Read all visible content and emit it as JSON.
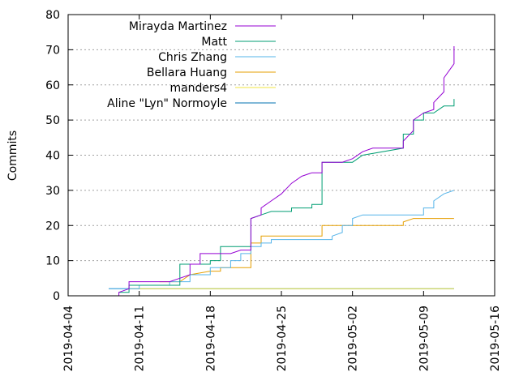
{
  "chart_data": {
    "type": "line",
    "title": "",
    "xlabel": "",
    "ylabel": "Commits",
    "x_axis_type": "date",
    "xlim": [
      "2019-04-04",
      "2019-05-16"
    ],
    "ylim": [
      0,
      80
    ],
    "x_ticks": [
      "2019-04-04",
      "2019-04-11",
      "2019-04-18",
      "2019-04-25",
      "2019-05-02",
      "2019-05-09",
      "2019-05-16"
    ],
    "y_ticks": [
      0,
      10,
      20,
      30,
      40,
      50,
      60,
      70,
      80
    ],
    "grid": "horizontal dotted",
    "legend_position": "top-left",
    "series": [
      {
        "name": "Mirayda Martinez",
        "color": "#9400d3",
        "points": [
          [
            "2019-04-09",
            0
          ],
          [
            "2019-04-09",
            1
          ],
          [
            "2019-04-10",
            2
          ],
          [
            "2019-04-10",
            4
          ],
          [
            "2019-04-14",
            4
          ],
          [
            "2019-04-15",
            5
          ],
          [
            "2019-04-16",
            6
          ],
          [
            "2019-04-16",
            9
          ],
          [
            "2019-04-17",
            9
          ],
          [
            "2019-04-17",
            12
          ],
          [
            "2019-04-20",
            12
          ],
          [
            "2019-04-21",
            13
          ],
          [
            "2019-04-22",
            13
          ],
          [
            "2019-04-22",
            22
          ],
          [
            "2019-04-23",
            23
          ],
          [
            "2019-04-23",
            25
          ],
          [
            "2019-04-24",
            27
          ],
          [
            "2019-04-25",
            29
          ],
          [
            "2019-04-26",
            32
          ],
          [
            "2019-04-27",
            34
          ],
          [
            "2019-04-28",
            35
          ],
          [
            "2019-04-29",
            35
          ],
          [
            "2019-04-29",
            38
          ],
          [
            "2019-05-01",
            38
          ],
          [
            "2019-05-02",
            39
          ],
          [
            "2019-05-03",
            41
          ],
          [
            "2019-05-04",
            42
          ],
          [
            "2019-05-07",
            42
          ],
          [
            "2019-05-07",
            44
          ],
          [
            "2019-05-08",
            47
          ],
          [
            "2019-05-08",
            50
          ],
          [
            "2019-05-09",
            52
          ],
          [
            "2019-05-10",
            53
          ],
          [
            "2019-05-10",
            55
          ],
          [
            "2019-05-11",
            58
          ],
          [
            "2019-05-11",
            62
          ],
          [
            "2019-05-12",
            66
          ],
          [
            "2019-05-12",
            71
          ]
        ]
      },
      {
        "name": "Matt",
        "color": "#009e73",
        "points": [
          [
            "2019-04-09",
            1
          ],
          [
            "2019-04-10",
            1
          ],
          [
            "2019-04-10",
            3
          ],
          [
            "2019-04-15",
            3
          ],
          [
            "2019-04-15",
            9
          ],
          [
            "2019-04-18",
            9
          ],
          [
            "2019-04-18",
            10
          ],
          [
            "2019-04-19",
            10
          ],
          [
            "2019-04-19",
            14
          ],
          [
            "2019-04-22",
            14
          ],
          [
            "2019-04-22",
            22
          ],
          [
            "2019-04-23",
            23
          ],
          [
            "2019-04-24",
            24
          ],
          [
            "2019-04-26",
            24
          ],
          [
            "2019-04-26",
            25
          ],
          [
            "2019-04-28",
            25
          ],
          [
            "2019-04-28",
            26
          ],
          [
            "2019-04-29",
            26
          ],
          [
            "2019-04-29",
            38
          ],
          [
            "2019-05-02",
            38
          ],
          [
            "2019-05-03",
            40
          ],
          [
            "2019-05-07",
            42
          ],
          [
            "2019-05-07",
            46
          ],
          [
            "2019-05-08",
            46
          ],
          [
            "2019-05-08",
            50
          ],
          [
            "2019-05-09",
            50
          ],
          [
            "2019-05-09",
            52
          ],
          [
            "2019-05-10",
            52
          ],
          [
            "2019-05-11",
            54
          ],
          [
            "2019-05-12",
            54
          ],
          [
            "2019-05-12",
            56
          ]
        ]
      },
      {
        "name": "Chris Zhang",
        "color": "#56b4e9",
        "points": [
          [
            "2019-04-08",
            2
          ],
          [
            "2019-04-11",
            2
          ],
          [
            "2019-04-11",
            3
          ],
          [
            "2019-04-14",
            3
          ],
          [
            "2019-04-14",
            4
          ],
          [
            "2019-04-16",
            4
          ],
          [
            "2019-04-16",
            6
          ],
          [
            "2019-04-18",
            6
          ],
          [
            "2019-04-18",
            8
          ],
          [
            "2019-04-20",
            8
          ],
          [
            "2019-04-20",
            10
          ],
          [
            "2019-04-21",
            10
          ],
          [
            "2019-04-21",
            12
          ],
          [
            "2019-04-22",
            12
          ],
          [
            "2019-04-22",
            14
          ],
          [
            "2019-04-23",
            14
          ],
          [
            "2019-04-23",
            15
          ],
          [
            "2019-04-24",
            15
          ],
          [
            "2019-04-24",
            16
          ],
          [
            "2019-04-30",
            16
          ],
          [
            "2019-04-30",
            17
          ],
          [
            "2019-05-01",
            18
          ],
          [
            "2019-05-01",
            20
          ],
          [
            "2019-05-02",
            20
          ],
          [
            "2019-05-02",
            22
          ],
          [
            "2019-05-03",
            23
          ],
          [
            "2019-05-09",
            23
          ],
          [
            "2019-05-09",
            25
          ],
          [
            "2019-05-10",
            25
          ],
          [
            "2019-05-10",
            27
          ],
          [
            "2019-05-11",
            29
          ],
          [
            "2019-05-12",
            30
          ]
        ]
      },
      {
        "name": "Bellara Huang",
        "color": "#e69f00",
        "points": [
          [
            "2019-04-13",
            4
          ],
          [
            "2019-04-15",
            4
          ],
          [
            "2019-04-16",
            6
          ],
          [
            "2019-04-18",
            7
          ],
          [
            "2019-04-19",
            7
          ],
          [
            "2019-04-19",
            8
          ],
          [
            "2019-04-22",
            8
          ],
          [
            "2019-04-22",
            15
          ],
          [
            "2019-04-23",
            15
          ],
          [
            "2019-04-23",
            17
          ],
          [
            "2019-04-29",
            17
          ],
          [
            "2019-04-29",
            20
          ],
          [
            "2019-05-07",
            20
          ],
          [
            "2019-05-07",
            21
          ],
          [
            "2019-05-08",
            22
          ],
          [
            "2019-05-12",
            22
          ]
        ]
      },
      {
        "name": "manders4",
        "color": "#f0e442",
        "points": [
          [
            "2019-04-10",
            2
          ],
          [
            "2019-05-12",
            2
          ]
        ]
      },
      {
        "name": "Aline \"Lyn\" Normoyle",
        "color": "#0072b2",
        "points": [
          [
            "2019-04-08",
            2
          ],
          [
            "2019-05-12",
            2
          ]
        ]
      }
    ]
  }
}
